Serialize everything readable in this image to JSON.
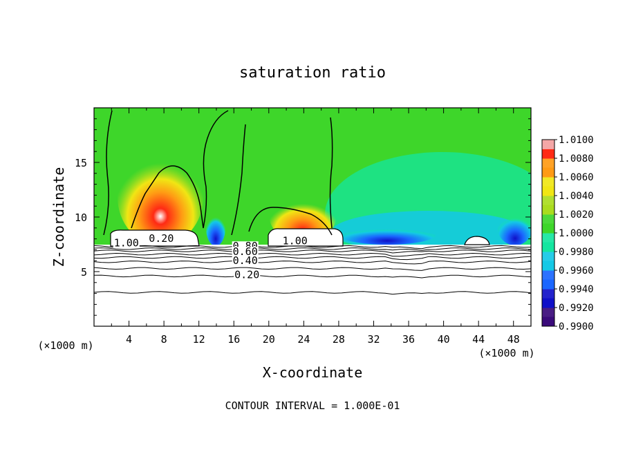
{
  "chart_data": {
    "type": "heatmap",
    "title": "saturation ratio",
    "xlabel": "X-coordinate",
    "ylabel": "Z-coordinate",
    "x_unit_label_left": "(×1000 m)",
    "x_unit_label_right": "(×1000 m)",
    "xlim": [
      0,
      50
    ],
    "ylim": [
      0,
      20
    ],
    "xticks": [
      4,
      8,
      12,
      16,
      20,
      24,
      28,
      32,
      36,
      40,
      44,
      48
    ],
    "yticks": [
      5,
      10,
      15
    ],
    "footer": "CONTOUR INTERVAL = 1.000E-01",
    "colorbar": {
      "levels": [
        0.99,
        0.992,
        0.994,
        0.996,
        0.998,
        1.0,
        1.002,
        1.004,
        1.006,
        1.008,
        1.01
      ],
      "labels": [
        "0.9900",
        "0.9920",
        "0.9940",
        "0.9960",
        "0.9980",
        "1.0000",
        "1.0020",
        "1.0040",
        "1.0060",
        "1.0080",
        "1.0100"
      ],
      "colors": [
        "#3a0a7a",
        "#1010c8",
        "#1a66ff",
        "#14c8e6",
        "#14e6a0",
        "#3ed62a",
        "#aadc1e",
        "#f0e614",
        "#ff9a14",
        "#ff2a14",
        "#f3a0a0"
      ]
    },
    "contour_labels": [
      {
        "text": "1.00",
        "x": 3.7,
        "y": 7.5
      },
      {
        "text": "0.20",
        "x": 7.7,
        "y": 7.9
      },
      {
        "text": "1.00",
        "x": 23.0,
        "y": 7.7
      },
      {
        "text": "0.80",
        "x": 17.3,
        "y": 7.2
      },
      {
        "text": "0.60",
        "x": 17.3,
        "y": 6.7
      },
      {
        "text": "0.40",
        "x": 17.3,
        "y": 5.9
      },
      {
        "text": "0.20",
        "x": 17.5,
        "y": 4.6
      }
    ],
    "contour_lines_z": [
      3.1,
      4.6,
      5.3,
      5.9,
      6.3,
      6.6,
      6.9,
      7.1,
      7.3
    ]
  }
}
